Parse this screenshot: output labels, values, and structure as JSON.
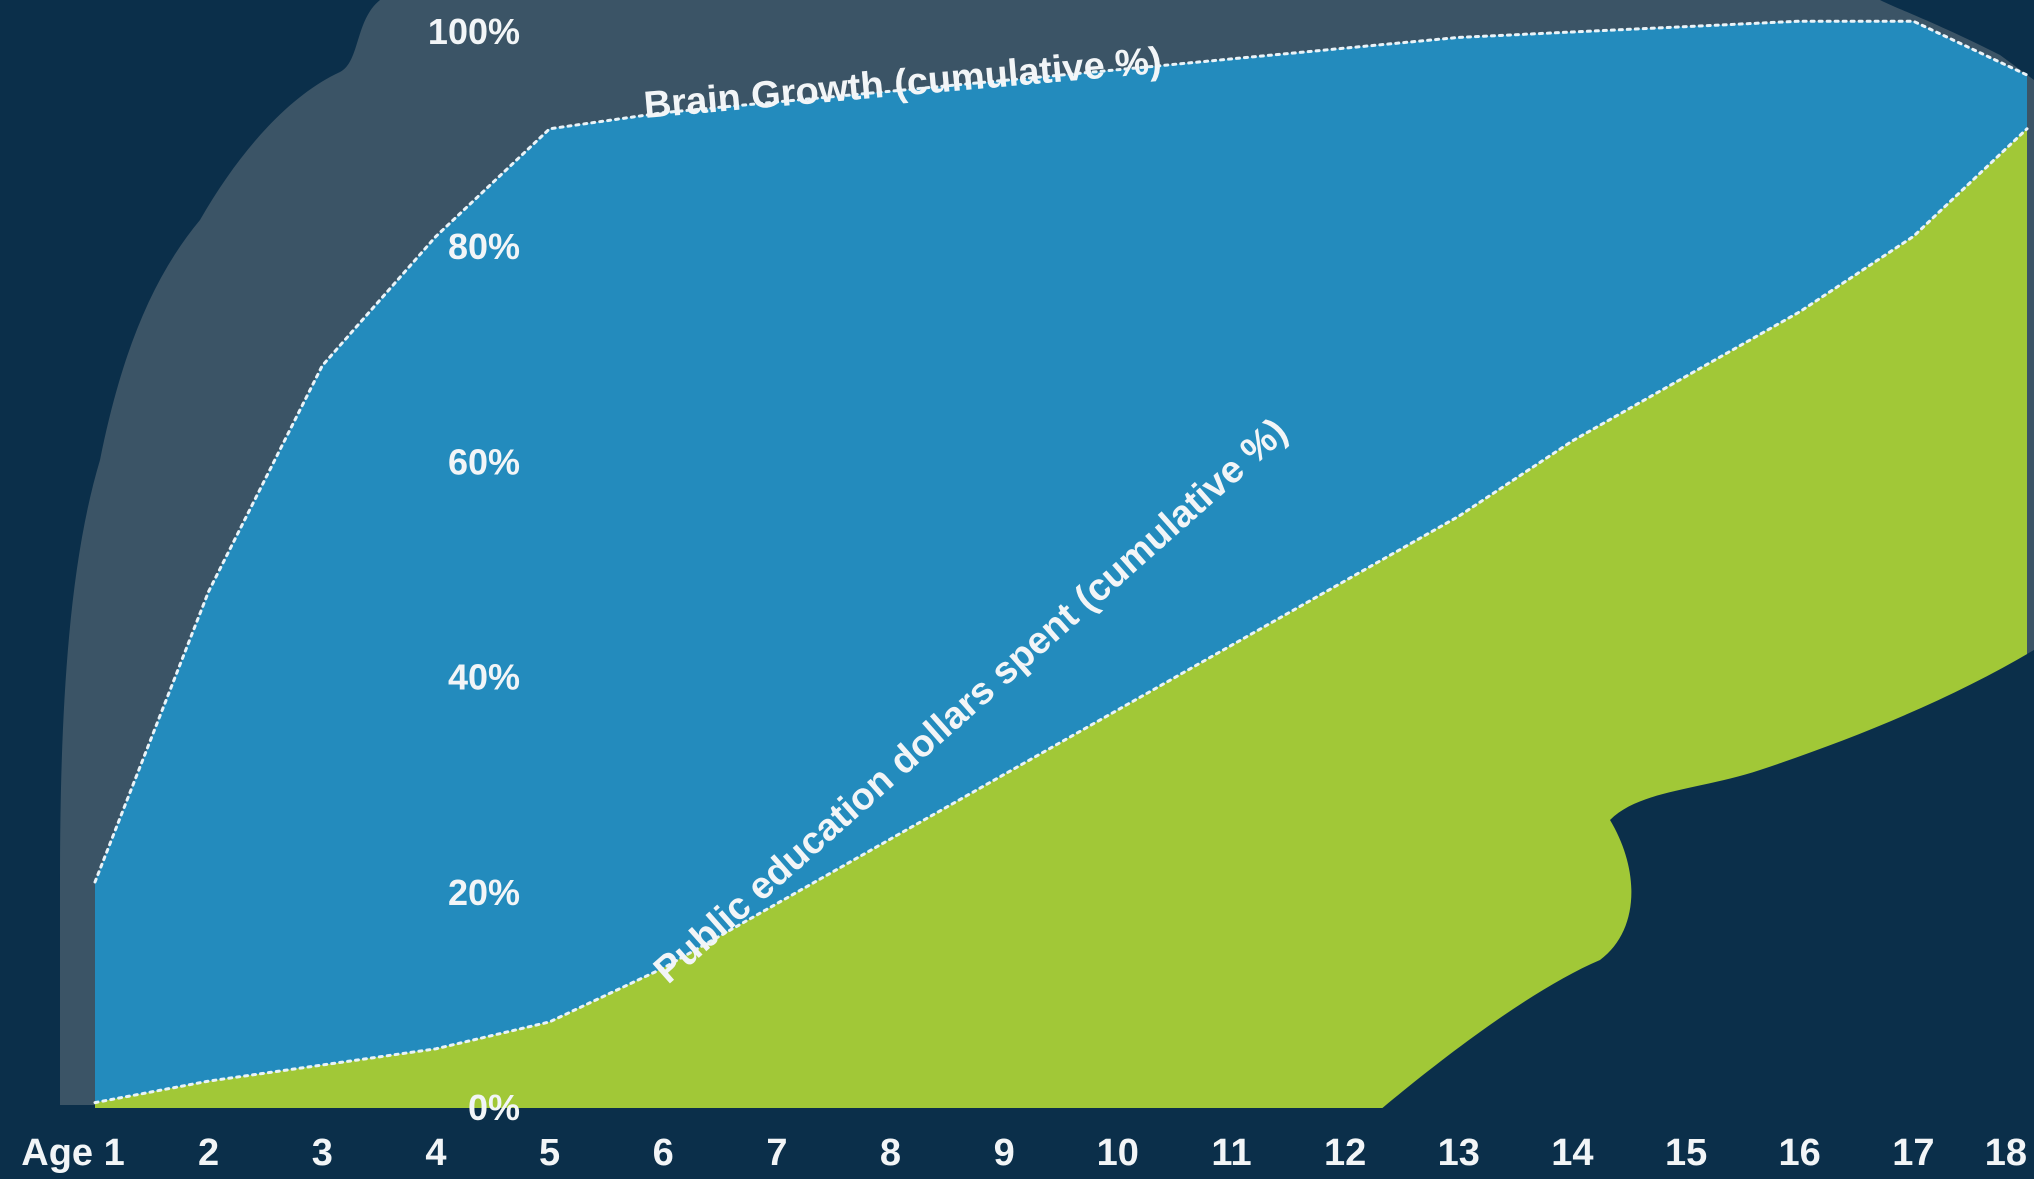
{
  "chart_data": {
    "type": "area",
    "x": [
      1,
      2,
      3,
      4,
      5,
      6,
      7,
      8,
      9,
      10,
      11,
      12,
      13,
      14,
      15,
      16,
      17,
      18
    ],
    "x_tick_labels": [
      "Age 1",
      "2",
      "3",
      "4",
      "5",
      "6",
      "7",
      "8",
      "9",
      "10",
      "11",
      "12",
      "13",
      "14",
      "15",
      "16",
      "17",
      "18"
    ],
    "y_tick_labels": [
      "0%",
      "20%",
      "40%",
      "60%",
      "80%",
      "100%"
    ],
    "y_ticks": [
      0,
      20,
      40,
      60,
      80,
      100
    ],
    "ylim": [
      0,
      100
    ],
    "xlim": [
      1,
      18
    ],
    "series": [
      {
        "name": "Brain Growth  (cumulative %)",
        "x": [
          1,
          2,
          3,
          4,
          5,
          6,
          7,
          8,
          9,
          10,
          11,
          12,
          13,
          14,
          15,
          16,
          17,
          18
        ],
        "values": [
          21,
          48,
          69,
          81,
          91,
          92.5,
          93.5,
          94.5,
          95.5,
          96.5,
          97.5,
          98.5,
          99.5,
          100,
          100.5,
          101,
          101,
          96
        ],
        "color": "#238bbd"
      },
      {
        "name": "Public education dollars spent (cumulative %)",
        "x": [
          1,
          2,
          3,
          4,
          5,
          6,
          7,
          8,
          9,
          10,
          11,
          12,
          13,
          14,
          15,
          16,
          17,
          18
        ],
        "values": [
          0.5,
          2.5,
          4,
          5.5,
          8,
          13,
          19,
          25,
          31,
          37,
          43,
          49,
          55,
          62,
          68,
          74,
          81,
          91
        ],
        "color": "#a1c837"
      }
    ],
    "grid": false,
    "legend": "none",
    "colors": {
      "background": "#0b2f4a",
      "brain_silhouette": "#3b5466",
      "label": "#f2f5f7"
    }
  }
}
